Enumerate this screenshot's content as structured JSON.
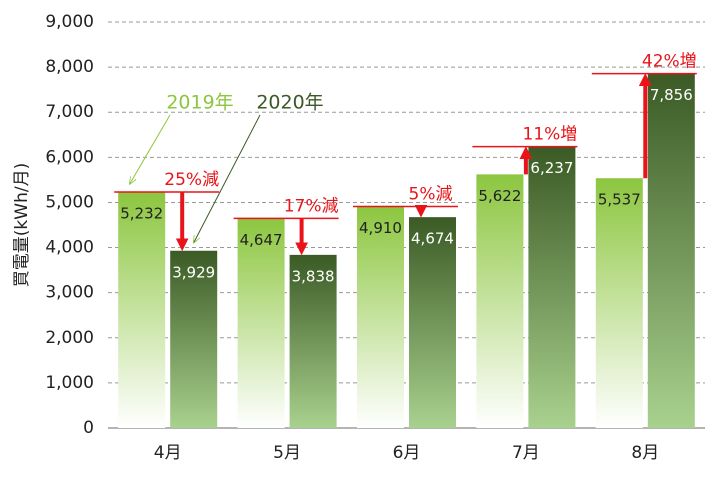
{
  "chart_data": {
    "type": "bar",
    "y_label": "買電量(kWh/月)",
    "categories": [
      "4月",
      "5月",
      "6月",
      "7月",
      "8月"
    ],
    "series": [
      {
        "name": "2019年",
        "color": "#8cc63f",
        "values": [
          5232,
          4647,
          4910,
          5622,
          5537
        ],
        "value_labels": [
          "5,232",
          "4,647",
          "4,910",
          "5,622",
          "5,537"
        ]
      },
      {
        "name": "2020年",
        "color": "#3b5a25",
        "values": [
          3929,
          3838,
          4674,
          6237,
          7856
        ],
        "value_labels": [
          "3,929",
          "3,838",
          "4,674",
          "6,237",
          "7,856"
        ]
      }
    ],
    "annotations": [
      "25%減",
      "17%減",
      "5%減",
      "11%増",
      "42%増"
    ],
    "ylim": [
      0,
      9000
    ],
    "yticks": [
      0,
      {
        "value": 1000,
        "label": "1,000"
      },
      {
        "value": 2000,
        "label": "2,000"
      },
      {
        "value": 3000,
        "label": "3,000"
      },
      {
        "value": 4000,
        "label": "4,000"
      },
      {
        "value": 5000,
        "label": "5,000"
      },
      {
        "value": 6000,
        "label": "6,000"
      },
      {
        "value": 7000,
        "label": "7,000"
      },
      {
        "value": 8000,
        "label": "8,000"
      },
      {
        "value": 9000,
        "label": "9,000"
      }
    ],
    "grid": true
  }
}
